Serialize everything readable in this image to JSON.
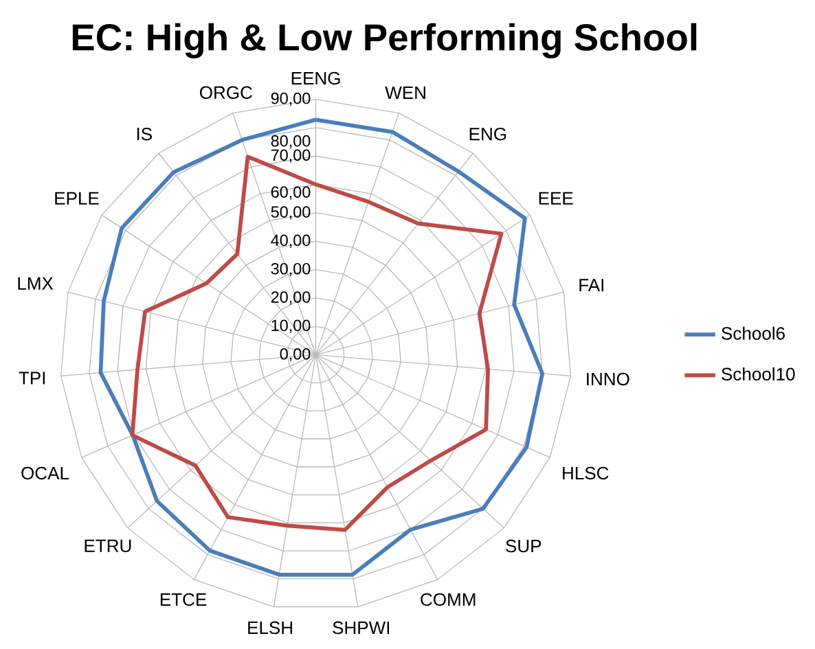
{
  "chart_data": {
    "type": "radar",
    "title": "EC: High & Low Performing School",
    "categories": [
      "EENG",
      "WEN",
      "ENG",
      "EEE",
      "FAI",
      "INNO",
      "HLSC",
      "SUP",
      "COMM",
      "SHPWI",
      "ELSH",
      "ETCE",
      "ETRU",
      "OCAL",
      "TPI",
      "LMX",
      "EPLE",
      "IS",
      "ORGC"
    ],
    "series": [
      {
        "name": "School6",
        "color": "#4a7ebb",
        "values": [
          82.8,
          83,
          81.8,
          87.9,
          72,
          80,
          81,
          80,
          70,
          78.5,
          78.5,
          78.4,
          76,
          70.4,
          76,
          77,
          81.6,
          81.5,
          80
        ]
      },
      {
        "name": "School10",
        "color": "#be4b48",
        "values": [
          60,
          57,
          58.6,
          78,
          59.4,
          60.8,
          65.4,
          55,
          53,
          62.5,
          61,
          65,
          57.6,
          70.5,
          63,
          62,
          46,
          45,
          73.8
        ]
      }
    ],
    "ylim": [
      0,
      90
    ],
    "yticks": [
      {
        "value": 0,
        "label": "0,00"
      },
      {
        "value": 10,
        "label": "10,00"
      },
      {
        "value": 20,
        "label": "20,00"
      },
      {
        "value": 30,
        "label": "30,00"
      },
      {
        "value": 40,
        "label": "40,00"
      },
      {
        "value": 50,
        "label": "50,00"
      },
      {
        "value": 60,
        "label": "60,00"
      },
      {
        "value": 70,
        "label": "70,00"
      },
      {
        "value": 80,
        "label": "80,00"
      },
      {
        "value": 90,
        "label": "90,00"
      }
    ],
    "grid": true,
    "legend": "right"
  }
}
